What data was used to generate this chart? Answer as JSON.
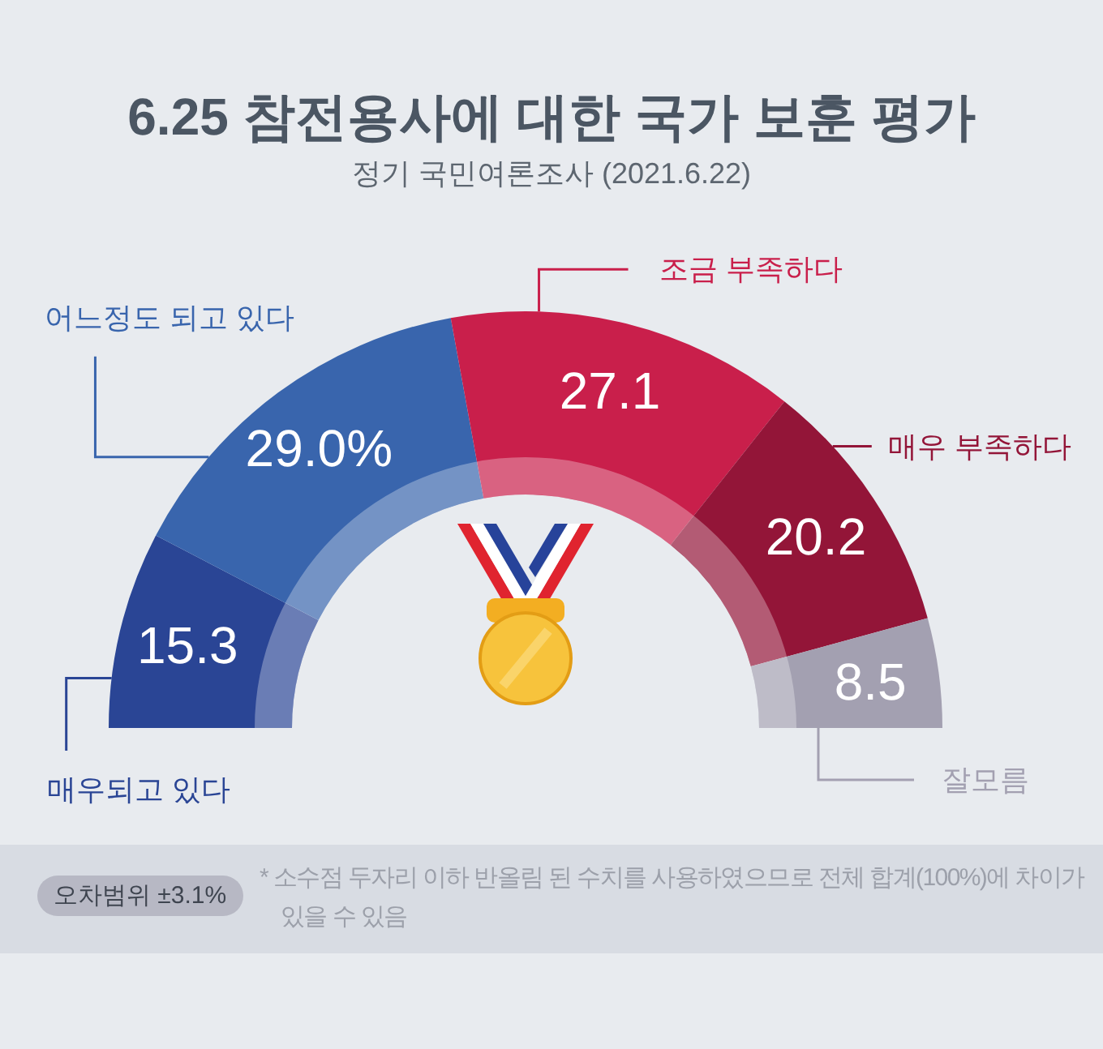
{
  "chart_data": {
    "type": "donut",
    "title": "6.25 참전용사에 대한 국가 보훈 평가",
    "subtitle": "정기 국민여론조사 (2021.6.22)",
    "categories": [
      "매우되고 있다",
      "어느정도 되고 있다",
      "조금 부족하다",
      "매우 부족하다",
      "잘모름"
    ],
    "values": [
      15.3,
      29.0,
      27.1,
      20.2,
      8.5
    ],
    "colors": [
      "#2a4595",
      "#3965ad",
      "#c91f4b",
      "#931538",
      "#a3a0b1"
    ],
    "value_labels": [
      "15.3",
      "29.0%",
      "27.1",
      "20.2",
      "8.5"
    ],
    "annotations": [
      "오차범위 ±3.1%",
      "* 소수점 두자리 이하 반올림 된 수치를 사용하였으므로 전체 합계(100%)에 차이가 있을 수 있음"
    ]
  }
}
